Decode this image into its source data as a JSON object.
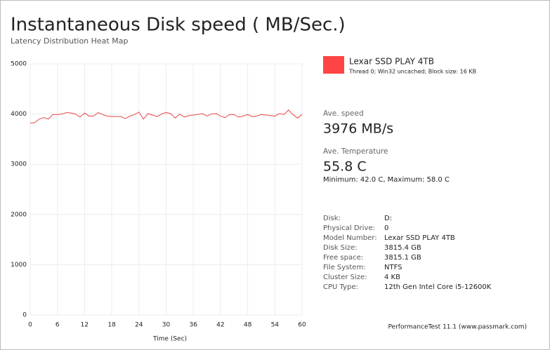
{
  "chart_data": {
    "type": "line",
    "title": "Instantaneous Disk speed ( MB/Sec.)",
    "subtitle": "Latency Distribution Heat Map",
    "x_label": "Time (Sec)",
    "x": [
      0,
      1,
      2,
      3,
      4,
      5,
      6,
      7,
      8,
      9,
      10,
      11,
      12,
      13,
      14,
      15,
      16,
      17,
      18,
      19,
      20,
      21,
      22,
      23,
      24,
      25,
      26,
      27,
      28,
      29,
      30,
      31,
      32,
      33,
      34,
      35,
      36,
      37,
      38,
      39,
      40,
      41,
      42,
      43,
      44,
      45,
      46,
      47,
      48,
      49,
      50,
      51,
      52,
      53,
      54,
      55,
      56,
      57,
      58,
      59,
      60
    ],
    "series": [
      {
        "name": "Lexar SSD PLAY 4TB",
        "note": "Thread 0; Win32 uncached; Block size: 16 KB",
        "color": "#e8474c",
        "legend_color": "#ff4444",
        "values": [
          3820,
          3830,
          3900,
          3930,
          3900,
          3990,
          3990,
          4000,
          4030,
          4020,
          4000,
          3940,
          4020,
          3960,
          3960,
          4030,
          3990,
          3960,
          3950,
          3950,
          3950,
          3910,
          3960,
          3990,
          4040,
          3900,
          4010,
          3980,
          3950,
          4000,
          4030,
          4010,
          3920,
          4000,
          3940,
          3970,
          3980,
          3990,
          4010,
          3960,
          4000,
          4010,
          3960,
          3930,
          3990,
          3990,
          3940,
          3960,
          3990,
          3950,
          3960,
          3990,
          3980,
          3970,
          3960,
          4010,
          3990,
          4080,
          3990,
          3920,
          3990
        ]
      }
    ],
    "xlim": [
      0,
      60
    ],
    "xticks": [
      0,
      6,
      12,
      18,
      24,
      30,
      36,
      42,
      48,
      54,
      60
    ],
    "ylim": [
      0,
      5000
    ],
    "yticks": [
      0,
      1000,
      2000,
      3000,
      4000,
      5000
    ],
    "grid": true
  },
  "summary": {
    "speed_label": "Ave. speed",
    "speed": "3976 MB/s",
    "temp_label": "Ave. Temperature",
    "temp": "55.8 C",
    "temp_range": "Minimum: 42.0 C, Maximum: 58.0 C"
  },
  "info": [
    [
      "Disk:",
      "D:"
    ],
    [
      "Physical Drive:",
      "0"
    ],
    [
      "Model Number:",
      "Lexar SSD PLAY 4TB"
    ],
    [
      "Disk Size:",
      "3815.4 GB"
    ],
    [
      "Free space:",
      "3815.1 GB"
    ],
    [
      "File System:",
      "NTFS"
    ],
    [
      "Cluster Size:",
      "4 KB"
    ],
    [
      "CPU Type:",
      "12th Gen Intel Core i5-12600K"
    ]
  ],
  "footer": "PerformanceTest 11.1 (www.passmark.com)"
}
